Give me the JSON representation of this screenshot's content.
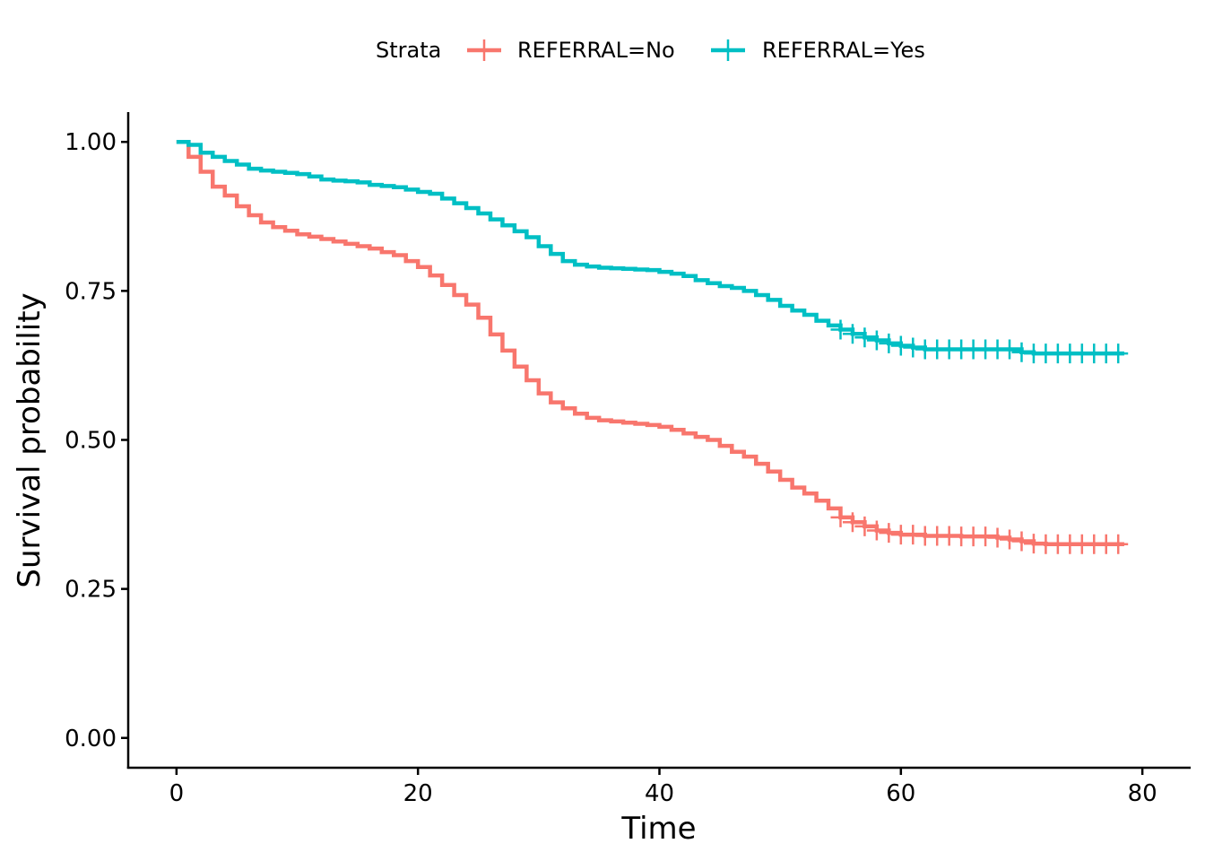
{
  "chart_data": {
    "type": "line",
    "xlabel": "Time",
    "ylabel": "Survival probability",
    "xlim": [
      -4,
      84
    ],
    "ylim": [
      -0.05,
      1.05
    ],
    "x_ticks": [
      0,
      20,
      40,
      60,
      80
    ],
    "x_tick_labels": [
      "0",
      "20",
      "40",
      "60",
      "80"
    ],
    "y_ticks": [
      0,
      0.25,
      0.5,
      0.75,
      1.0
    ],
    "y_tick_labels": [
      "0.00",
      "0.25",
      "0.50",
      "0.75",
      "1.00"
    ],
    "grid": false,
    "legend": {
      "title": "Strata",
      "placement": "top",
      "entries": [
        "REFERRAL=No",
        "REFERRAL=Yes"
      ]
    },
    "series": [
      {
        "name": "REFERRAL=No",
        "color": "#F8766D",
        "steps": [
          [
            0,
            1.0
          ],
          [
            1,
            0.975
          ],
          [
            2,
            0.95
          ],
          [
            3,
            0.925
          ],
          [
            4,
            0.91
          ],
          [
            5,
            0.892
          ],
          [
            6,
            0.877
          ],
          [
            7,
            0.865
          ],
          [
            8,
            0.857
          ],
          [
            9,
            0.851
          ],
          [
            10,
            0.845
          ],
          [
            11,
            0.841
          ],
          [
            12,
            0.837
          ],
          [
            13,
            0.833
          ],
          [
            14,
            0.829
          ],
          [
            15,
            0.825
          ],
          [
            16,
            0.821
          ],
          [
            17,
            0.815
          ],
          [
            18,
            0.81
          ],
          [
            19,
            0.8
          ],
          [
            20,
            0.79
          ],
          [
            21,
            0.776
          ],
          [
            22,
            0.76
          ],
          [
            23,
            0.743
          ],
          [
            24,
            0.727
          ],
          [
            25,
            0.705
          ],
          [
            26,
            0.677
          ],
          [
            27,
            0.65
          ],
          [
            28,
            0.623
          ],
          [
            29,
            0.6
          ],
          [
            30,
            0.578
          ],
          [
            31,
            0.563
          ],
          [
            32,
            0.553
          ],
          [
            33,
            0.544
          ],
          [
            34,
            0.537
          ],
          [
            35,
            0.533
          ],
          [
            36,
            0.531
          ],
          [
            37,
            0.529
          ],
          [
            38,
            0.527
          ],
          [
            39,
            0.525
          ],
          [
            40,
            0.522
          ],
          [
            41,
            0.517
          ],
          [
            42,
            0.511
          ],
          [
            43,
            0.505
          ],
          [
            44,
            0.5
          ],
          [
            45,
            0.49
          ],
          [
            46,
            0.48
          ],
          [
            47,
            0.472
          ],
          [
            48,
            0.46
          ],
          [
            49,
            0.447
          ],
          [
            50,
            0.433
          ],
          [
            51,
            0.42
          ],
          [
            52,
            0.41
          ],
          [
            53,
            0.398
          ],
          [
            54,
            0.385
          ],
          [
            55,
            0.37
          ],
          [
            56,
            0.362
          ],
          [
            57,
            0.355
          ],
          [
            58,
            0.348
          ],
          [
            59,
            0.344
          ],
          [
            60,
            0.341
          ],
          [
            62,
            0.339
          ],
          [
            65,
            0.338
          ],
          [
            68,
            0.336
          ],
          [
            69,
            0.333
          ],
          [
            70,
            0.33
          ],
          [
            71,
            0.326
          ],
          [
            72,
            0.325
          ],
          [
            78.5,
            0.325
          ]
        ],
        "censor_times": [
          55,
          56,
          57,
          58,
          59,
          60,
          61,
          62,
          63,
          64,
          65,
          66,
          67,
          68,
          69,
          70,
          71,
          72,
          73,
          74,
          75,
          76,
          77,
          78
        ]
      },
      {
        "name": "REFERRAL=Yes",
        "color": "#00BFC4",
        "steps": [
          [
            0,
            1.0
          ],
          [
            1,
            0.995
          ],
          [
            2,
            0.982
          ],
          [
            3,
            0.975
          ],
          [
            4,
            0.968
          ],
          [
            5,
            0.962
          ],
          [
            6,
            0.955
          ],
          [
            7,
            0.952
          ],
          [
            8,
            0.95
          ],
          [
            9,
            0.948
          ],
          [
            10,
            0.946
          ],
          [
            11,
            0.942
          ],
          [
            12,
            0.937
          ],
          [
            13,
            0.935
          ],
          [
            14,
            0.934
          ],
          [
            15,
            0.932
          ],
          [
            16,
            0.928
          ],
          [
            17,
            0.926
          ],
          [
            18,
            0.924
          ],
          [
            19,
            0.92
          ],
          [
            20,
            0.916
          ],
          [
            21,
            0.913
          ],
          [
            22,
            0.905
          ],
          [
            23,
            0.897
          ],
          [
            24,
            0.889
          ],
          [
            25,
            0.88
          ],
          [
            26,
            0.87
          ],
          [
            27,
            0.86
          ],
          [
            28,
            0.85
          ],
          [
            29,
            0.84
          ],
          [
            30,
            0.825
          ],
          [
            31,
            0.812
          ],
          [
            32,
            0.8
          ],
          [
            33,
            0.794
          ],
          [
            34,
            0.791
          ],
          [
            35,
            0.789
          ],
          [
            36,
            0.788
          ],
          [
            37,
            0.787
          ],
          [
            38,
            0.786
          ],
          [
            39,
            0.785
          ],
          [
            40,
            0.782
          ],
          [
            41,
            0.779
          ],
          [
            42,
            0.775
          ],
          [
            43,
            0.768
          ],
          [
            44,
            0.763
          ],
          [
            45,
            0.758
          ],
          [
            46,
            0.755
          ],
          [
            47,
            0.75
          ],
          [
            48,
            0.743
          ],
          [
            49,
            0.735
          ],
          [
            50,
            0.725
          ],
          [
            51,
            0.717
          ],
          [
            52,
            0.71
          ],
          [
            53,
            0.7
          ],
          [
            54,
            0.692
          ],
          [
            55,
            0.685
          ],
          [
            56,
            0.678
          ],
          [
            57,
            0.672
          ],
          [
            58,
            0.667
          ],
          [
            59,
            0.662
          ],
          [
            60,
            0.658
          ],
          [
            61,
            0.655
          ],
          [
            62,
            0.652
          ],
          [
            69,
            0.652
          ],
          [
            70,
            0.647
          ],
          [
            71,
            0.645
          ],
          [
            78.5,
            0.645
          ]
        ],
        "censor_times": [
          55,
          56,
          57,
          58,
          59,
          60,
          61,
          62,
          63,
          64,
          65,
          66,
          67,
          68,
          69,
          70,
          71,
          72,
          73,
          74,
          75,
          76,
          77,
          78
        ]
      }
    ]
  }
}
